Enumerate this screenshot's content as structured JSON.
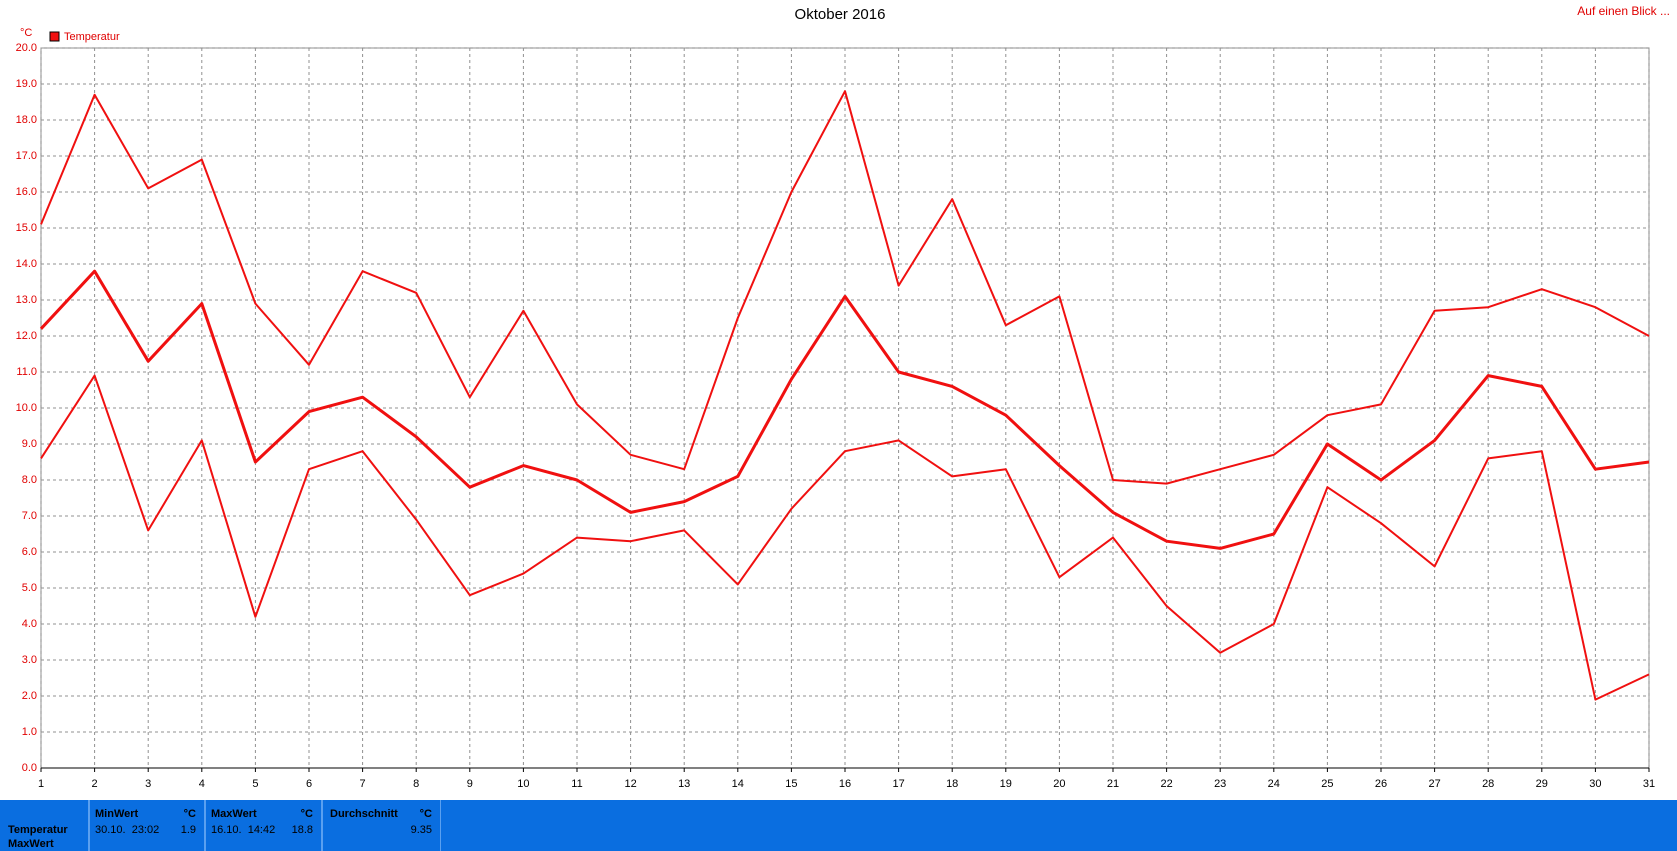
{
  "chart_data": {
    "type": "line",
    "title": "Oktober 2016",
    "ylabel": "°C",
    "corner_link": "Auf einen Blick ...",
    "x": [
      1,
      2,
      3,
      4,
      5,
      6,
      7,
      8,
      9,
      10,
      11,
      12,
      13,
      14,
      15,
      16,
      17,
      18,
      19,
      20,
      21,
      22,
      23,
      24,
      25,
      26,
      27,
      28,
      29,
      30,
      31
    ],
    "xlim": [
      1,
      31
    ],
    "xticks": [
      1,
      2,
      3,
      4,
      5,
      6,
      7,
      8,
      9,
      10,
      11,
      12,
      13,
      14,
      15,
      16,
      17,
      18,
      19,
      20,
      21,
      22,
      23,
      24,
      25,
      26,
      27,
      28,
      29,
      30,
      31
    ],
    "ylim": [
      0,
      20
    ],
    "yticks": [
      {
        "value": 0,
        "label": "0.0"
      },
      {
        "value": 1,
        "label": "1.0"
      },
      {
        "value": 2,
        "label": "2.0"
      },
      {
        "value": 3,
        "label": "3.0"
      },
      {
        "value": 4,
        "label": "4.0"
      },
      {
        "value": 5,
        "label": "5.0"
      },
      {
        "value": 6,
        "label": "6.0"
      },
      {
        "value": 7,
        "label": "7.0"
      },
      {
        "value": 8,
        "label": "8.0"
      },
      {
        "value": 9,
        "label": "9.0"
      },
      {
        "value": 10,
        "label": "10.0"
      },
      {
        "value": 11,
        "label": "11.0"
      },
      {
        "value": 12,
        "label": "12.0"
      },
      {
        "value": 13,
        "label": "13.0"
      },
      {
        "value": 14,
        "label": "14.0"
      },
      {
        "value": 15,
        "label": "15.0"
      },
      {
        "value": 16,
        "label": "16.0"
      },
      {
        "value": 17,
        "label": "17.0"
      },
      {
        "value": 18,
        "label": "18.0"
      },
      {
        "value": 19,
        "label": "19.0"
      },
      {
        "value": 20,
        "label": "20.0"
      }
    ],
    "grid": true,
    "legend": "top-left",
    "series": [
      {
        "name": "Temperatur",
        "color": "#f01010",
        "width": 3,
        "values": [
          12.2,
          13.8,
          11.3,
          12.9,
          8.5,
          9.9,
          10.3,
          9.2,
          7.8,
          8.4,
          8.0,
          7.1,
          7.4,
          8.1,
          10.8,
          13.1,
          11.0,
          10.6,
          9.8,
          8.4,
          7.1,
          6.3,
          6.1,
          6.5,
          9.0,
          8.0,
          9.1,
          10.9,
          10.6,
          8.3,
          8.5
        ]
      },
      {
        "color": "#f01010",
        "width": 2,
        "values": [
          15.1,
          18.7,
          16.1,
          16.9,
          12.9,
          11.2,
          13.8,
          13.2,
          10.3,
          12.7,
          10.1,
          8.7,
          8.3,
          12.5,
          16.0,
          18.8,
          13.4,
          15.8,
          12.3,
          13.1,
          8.0,
          7.9,
          8.3,
          8.7,
          9.8,
          10.1,
          12.7,
          12.8,
          13.3,
          12.8,
          12.0
        ]
      },
      {
        "color": "#f01010",
        "width": 2,
        "values": [
          8.6,
          10.9,
          6.6,
          9.1,
          4.2,
          8.3,
          8.8,
          6.9,
          4.8,
          5.4,
          6.4,
          6.3,
          6.6,
          5.1,
          7.2,
          8.8,
          9.1,
          8.1,
          8.3,
          5.3,
          6.4,
          4.5,
          3.2,
          4.0,
          7.8,
          6.8,
          5.6,
          8.6,
          8.8,
          1.9,
          2.6
        ]
      }
    ]
  },
  "stats": {
    "row_label": "Temperatur",
    "row_label_2": "MaxWert",
    "columns": [
      {
        "header": "MinWert",
        "unit": "°C",
        "when": "30.10.  23:02",
        "value": "1.9"
      },
      {
        "header": "MaxWert",
        "unit": "°C",
        "when": "16.10.  14:42",
        "value": "18.8"
      },
      {
        "header": "Durchschnitt",
        "unit": "°C",
        "value": "9.35"
      }
    ]
  }
}
